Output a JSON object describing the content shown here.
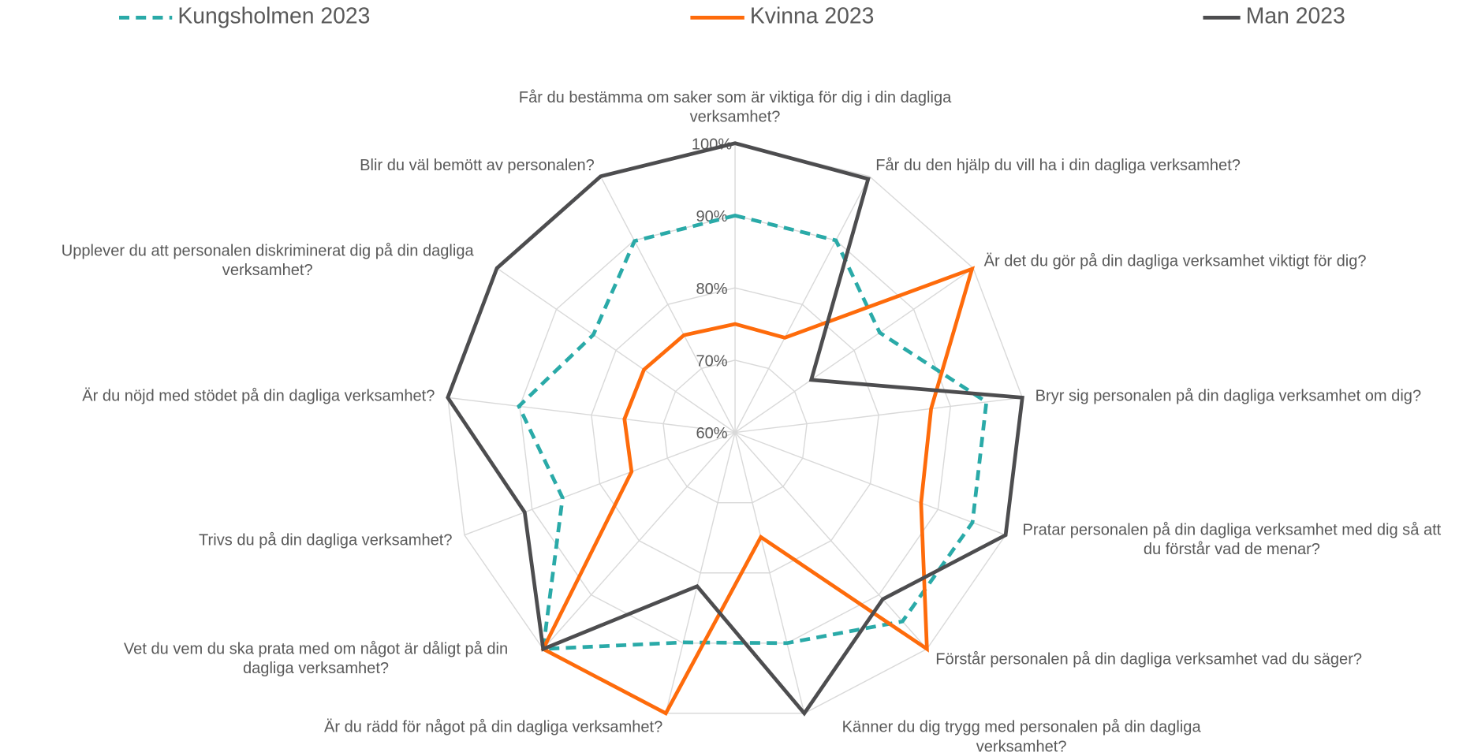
{
  "chart_data": {
    "type": "radar",
    "categories": [
      "Får du bestämma om saker som är viktiga för dig i din dagliga verksamhet?",
      "Får du den hjälp du vill ha i din dagliga verksamhet?",
      "Är det du gör på din dagliga verksamhet viktigt för dig?",
      "Bryr sig personalen på din dagliga verksamhet om dig?",
      "Pratar personalen på din dagliga verksamhet med dig så att du förstår vad de menar?",
      "Förstår personalen på din dagliga verksamhet vad du säger?",
      "Känner du dig trygg med personalen på din dagliga verksamhet?",
      "Är du rädd för något på din dagliga verksamhet?",
      "Vet du vem du ska prata med om något är dåligt på din dagliga verksamhet?",
      "Trivs du på din dagliga verksamhet?",
      "Är du nöjd med stödet på din dagliga verksamhet?",
      "Upplever du att personalen diskriminerat dig på din dagliga verksamhet?",
      "Blir du väl bemött av personalen?"
    ],
    "series": [
      {
        "name": "Kungsholmen 2023",
        "color": "#2aaaa8",
        "dashed": true,
        "values": [
          90,
          90,
          84.3,
          95,
          95.1,
          94.9,
          90,
          89.9,
          100,
          85.5,
          90.1,
          83.8,
          89.9
        ]
      },
      {
        "name": "Kvinna 2023",
        "color": "#fe6b0b",
        "values": [
          75,
          74.8,
          99.8,
          87.3,
          87.5,
          100,
          74.9,
          100,
          100,
          75.3,
          75.4,
          75.3,
          75.2
        ]
      },
      {
        "name": "Man 2023",
        "color": "#4d4d4f",
        "values": [
          100,
          99.6,
          72.8,
          100,
          100,
          90.8,
          100,
          81.9,
          100,
          91.1,
          100,
          100,
          100
        ]
      }
    ],
    "ylim": [
      60,
      100
    ],
    "yticks": [
      {
        "value": 60,
        "label": "60%"
      },
      {
        "value": 70,
        "label": "70%"
      },
      {
        "value": 80,
        "label": "80%"
      },
      {
        "value": 90,
        "label": "90%"
      },
      {
        "value": 100,
        "label": "100%"
      }
    ],
    "grid": true,
    "legend": "top"
  }
}
